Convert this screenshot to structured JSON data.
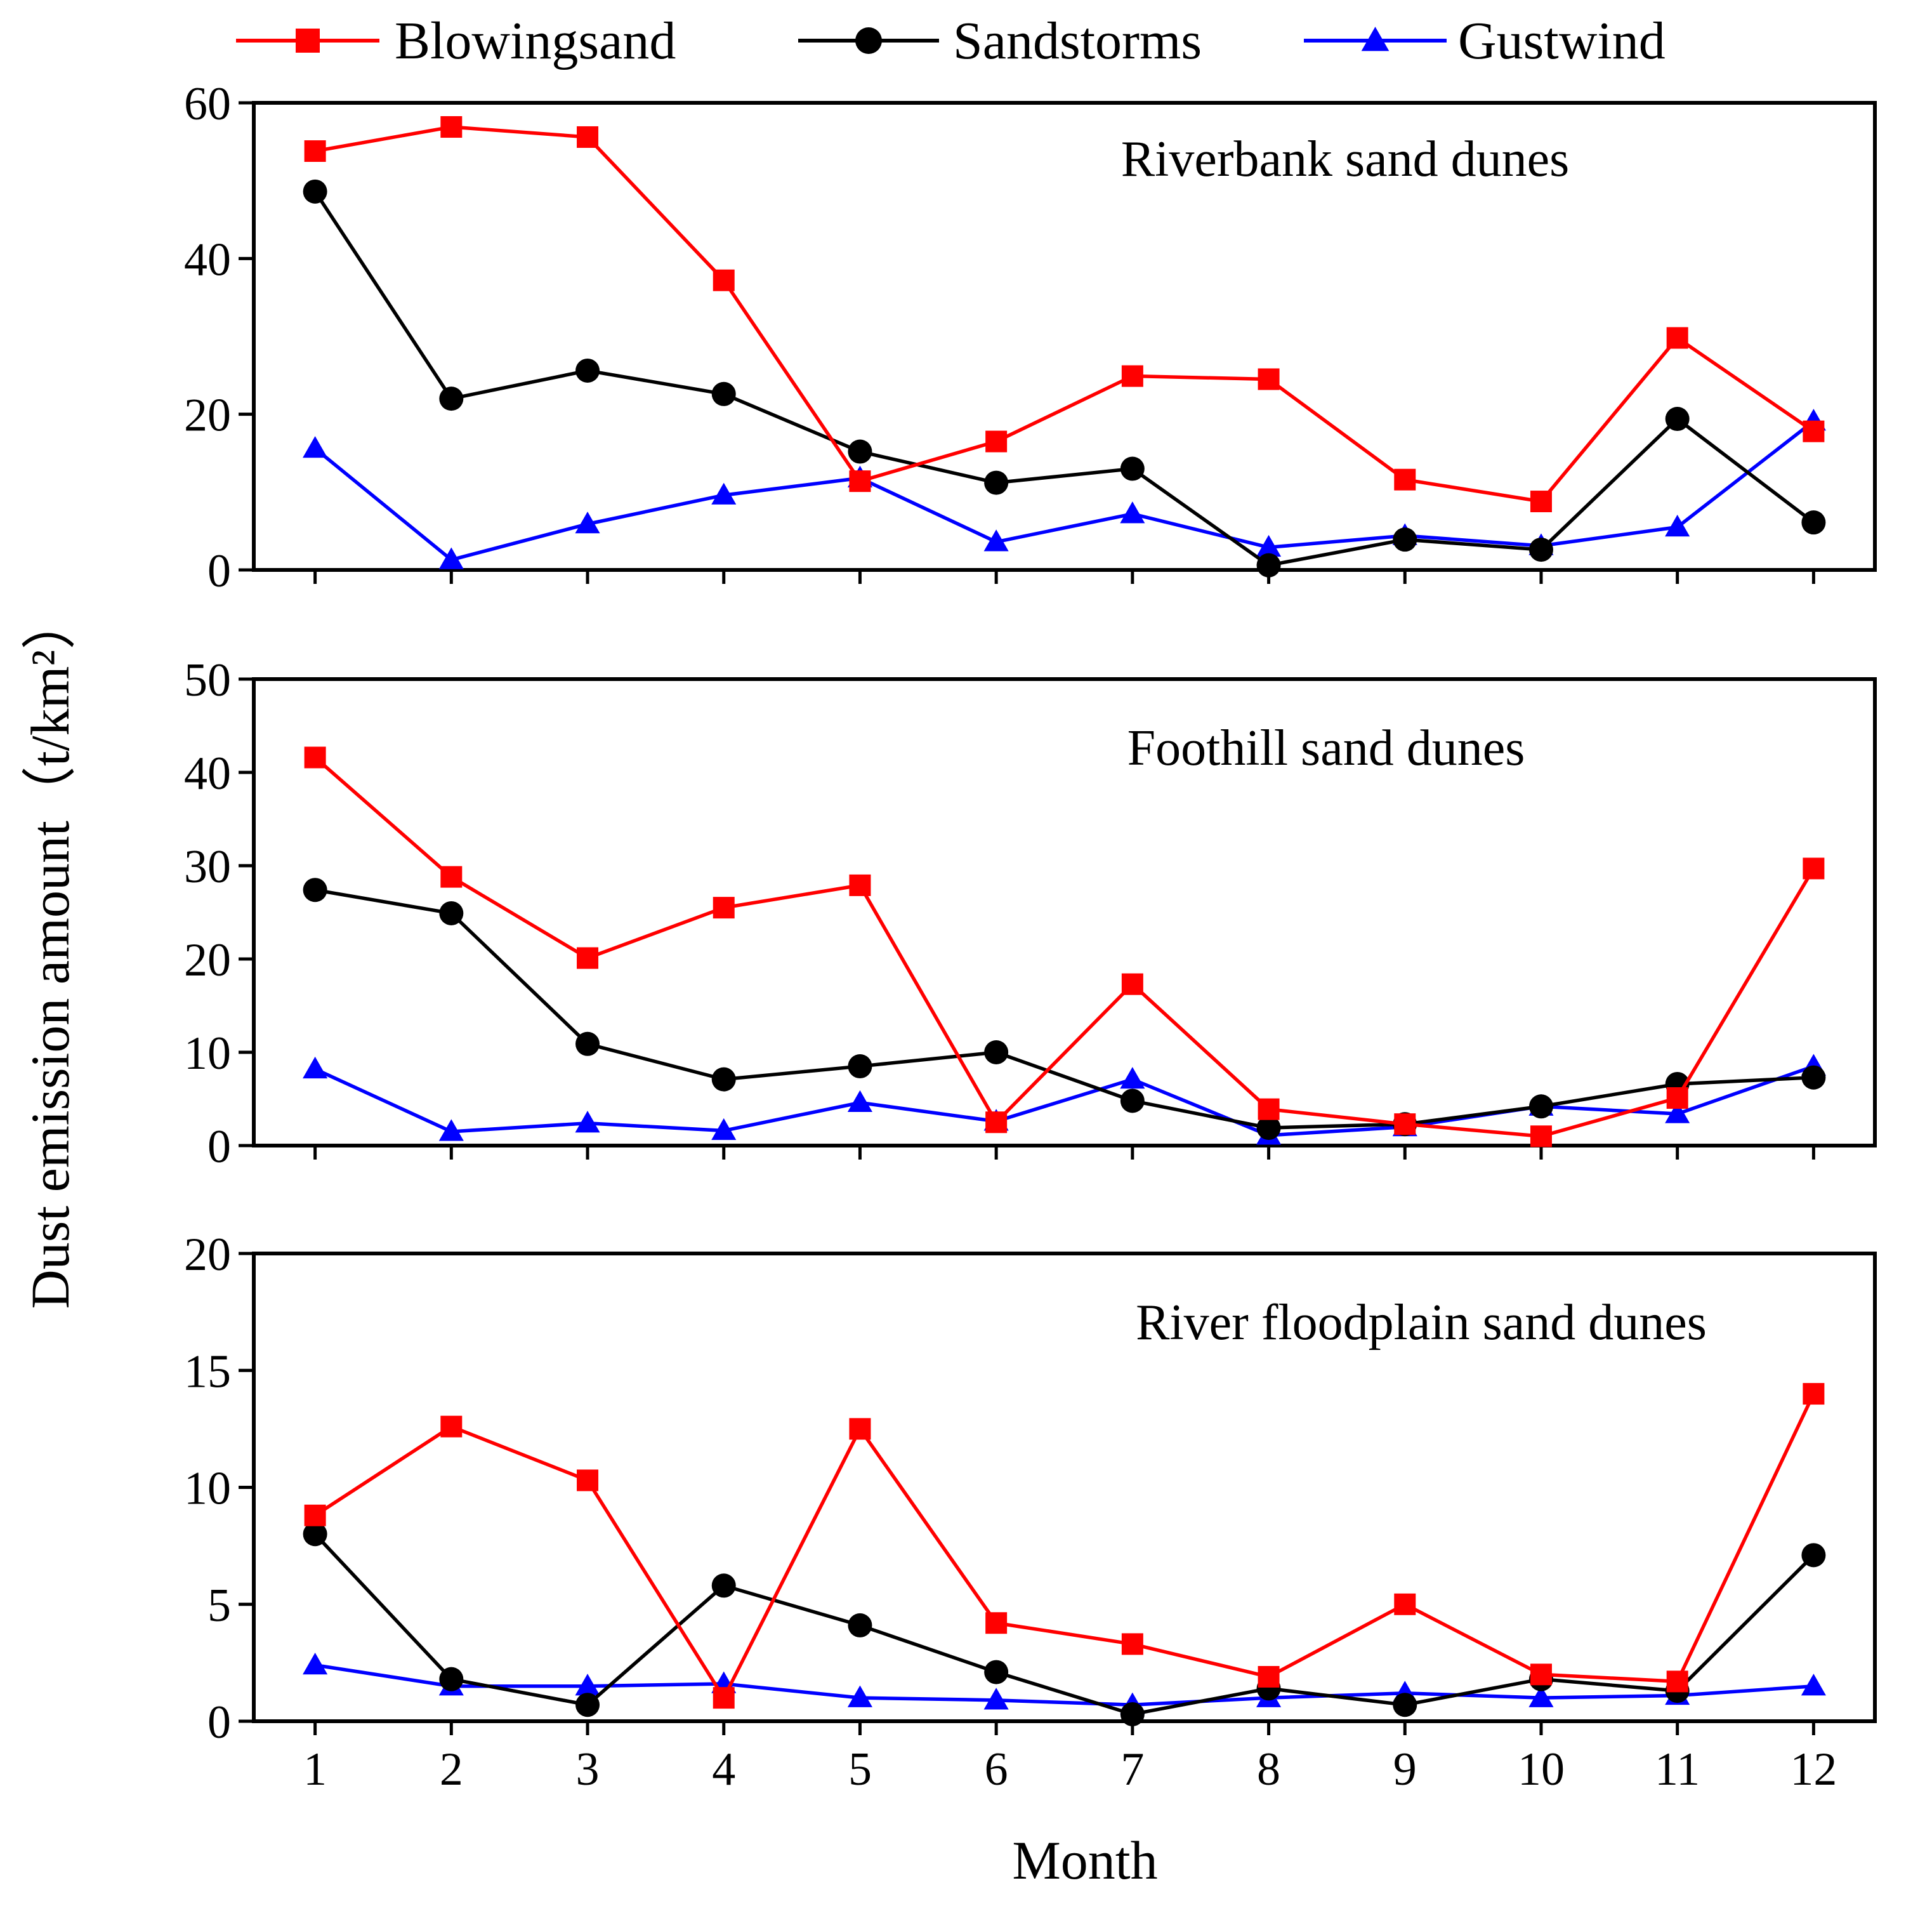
{
  "chart_data": {
    "type": "line",
    "x": [
      1,
      2,
      3,
      4,
      5,
      6,
      7,
      8,
      9,
      10,
      11,
      12
    ],
    "xlabel": "Month",
    "ylabel": "Dust emission amount（t/km²）",
    "legend": {
      "placement": "top",
      "entries": [
        {
          "name": "Blowingsand",
          "color": "#ff0000",
          "marker": "square"
        },
        {
          "name": "Sandstorms",
          "color": "#000000",
          "marker": "circle"
        },
        {
          "name": "Gustwind",
          "color": "#0000ff",
          "marker": "triangle"
        }
      ]
    },
    "grid": false,
    "panels": [
      {
        "title": "Riverbank sand dunes",
        "ylim": [
          0,
          60
        ],
        "yticks": [
          0,
          20,
          40,
          60
        ],
        "series": [
          {
            "name": "Blowingsand",
            "values": [
              53.8,
              56.9,
              55.6,
              37.2,
              11.4,
              16.5,
              24.9,
              24.5,
              11.6,
              8.8,
              29.8,
              17.8
            ]
          },
          {
            "name": "Sandstorms",
            "values": [
              48.6,
              22.0,
              25.6,
              22.6,
              15.2,
              11.2,
              13.0,
              0.6,
              3.9,
              2.6,
              19.4,
              6.1
            ]
          },
          {
            "name": "Gustwind",
            "values": [
              15.6,
              1.3,
              5.9,
              9.6,
              11.8,
              3.6,
              7.2,
              2.9,
              4.4,
              3.1,
              5.5,
              19.1
            ]
          }
        ]
      },
      {
        "title": "Foothill sand dunes",
        "ylim": [
          0,
          50
        ],
        "yticks": [
          0,
          10,
          20,
          30,
          40,
          50
        ],
        "series": [
          {
            "name": "Blowingsand",
            "values": [
              41.6,
              28.8,
              20.1,
              25.5,
              27.9,
              2.5,
              17.3,
              3.9,
              2.3,
              1.0,
              5.1,
              29.7
            ]
          },
          {
            "name": "Sandstorms",
            "values": [
              27.4,
              24.9,
              10.9,
              7.1,
              8.5,
              10.0,
              4.8,
              1.9,
              2.3,
              4.2,
              6.6,
              7.3
            ]
          },
          {
            "name": "Gustwind",
            "values": [
              8.2,
              1.5,
              2.4,
              1.6,
              4.6,
              2.6,
              7.1,
              1.1,
              2.0,
              4.2,
              3.4,
              8.5
            ]
          }
        ]
      },
      {
        "title": "River floodplain sand dunes",
        "ylim": [
          0,
          20
        ],
        "yticks": [
          0,
          5,
          10,
          15,
          20
        ],
        "series": [
          {
            "name": "Blowingsand",
            "values": [
              8.8,
              12.6,
              10.3,
              1.0,
              12.5,
              4.2,
              3.3,
              1.9,
              5.0,
              2.0,
              1.7,
              14.0
            ]
          },
          {
            "name": "Sandstorms",
            "values": [
              8.0,
              1.8,
              0.7,
              5.8,
              4.1,
              2.1,
              0.3,
              1.4,
              0.7,
              1.8,
              1.3,
              7.1
            ]
          },
          {
            "name": "Gustwind",
            "values": [
              2.4,
              1.5,
              1.5,
              1.6,
              1.0,
              0.9,
              0.7,
              1.0,
              1.2,
              1.0,
              1.1,
              1.5
            ]
          }
        ]
      }
    ]
  }
}
